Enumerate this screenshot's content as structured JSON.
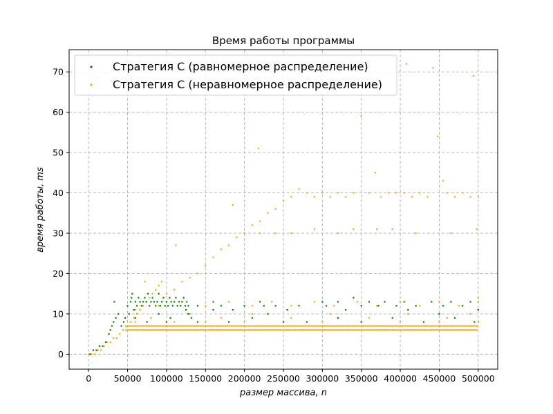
{
  "chart_data": {
    "type": "scatter",
    "title": "Время работы программы",
    "xlabel": "размер массива, n",
    "ylabel": "время работы, ms",
    "xlim": [
      -25000,
      525000
    ],
    "ylim": [
      -3.7,
      75.5
    ],
    "xticks": [
      0,
      50000,
      100000,
      150000,
      200000,
      250000,
      300000,
      350000,
      400000,
      450000,
      500000
    ],
    "yticks": [
      0,
      10,
      20,
      30,
      40,
      50,
      60,
      70
    ],
    "grid": true,
    "legend_position": "top-left",
    "series": [
      {
        "name": "Стратегия С (равномерное распределение)",
        "color": "#008000",
        "points": [
          [
            2000,
            0
          ],
          [
            6000,
            1
          ],
          [
            10000,
            1
          ],
          [
            14000,
            2
          ],
          [
            18000,
            2
          ],
          [
            22000,
            3
          ],
          [
            26000,
            5
          ],
          [
            28000,
            6
          ],
          [
            30000,
            7
          ],
          [
            32000,
            8
          ],
          [
            33000,
            13
          ],
          [
            35000,
            9
          ],
          [
            38000,
            10
          ],
          [
            42000,
            7
          ],
          [
            45000,
            8
          ],
          [
            47000,
            9
          ],
          [
            50000,
            12
          ],
          [
            52000,
            10
          ],
          [
            54000,
            13
          ],
          [
            55000,
            14
          ],
          [
            56000,
            15
          ],
          [
            58000,
            11
          ],
          [
            60000,
            13
          ],
          [
            62000,
            12
          ],
          [
            64000,
            14
          ],
          [
            66000,
            13
          ],
          [
            68000,
            12
          ],
          [
            70000,
            13
          ],
          [
            72000,
            14
          ],
          [
            74000,
            13
          ],
          [
            76000,
            15
          ],
          [
            78000,
            12
          ],
          [
            80000,
            13
          ],
          [
            82000,
            14
          ],
          [
            84000,
            13
          ],
          [
            86000,
            12
          ],
          [
            88000,
            13
          ],
          [
            90000,
            15
          ],
          [
            92000,
            12
          ],
          [
            94000,
            13
          ],
          [
            96000,
            14
          ],
          [
            98000,
            12
          ],
          [
            100000,
            13
          ],
          [
            102000,
            12
          ],
          [
            104000,
            14
          ],
          [
            106000,
            13
          ],
          [
            108000,
            12
          ],
          [
            110000,
            13
          ],
          [
            112000,
            14
          ],
          [
            114000,
            12
          ],
          [
            116000,
            13
          ],
          [
            118000,
            12
          ],
          [
            120000,
            13
          ],
          [
            122000,
            14
          ],
          [
            124000,
            12
          ],
          [
            126000,
            13
          ],
          [
            128000,
            12
          ],
          [
            60000,
            9
          ],
          [
            75000,
            8
          ],
          [
            90000,
            10
          ],
          [
            105000,
            9
          ],
          [
            125000,
            11
          ],
          [
            128000,
            10
          ],
          [
            132000,
            9
          ],
          [
            140000,
            12
          ],
          [
            160000,
            13
          ],
          [
            170000,
            12
          ],
          [
            185000,
            11
          ],
          [
            200000,
            12
          ],
          [
            220000,
            13
          ],
          [
            225000,
            12
          ],
          [
            240000,
            12
          ],
          [
            255000,
            11
          ],
          [
            270000,
            12
          ],
          [
            300000,
            13
          ],
          [
            305000,
            12
          ],
          [
            320000,
            13
          ],
          [
            340000,
            14
          ],
          [
            350000,
            12
          ],
          [
            360000,
            13
          ],
          [
            372000,
            12
          ],
          [
            380000,
            13
          ],
          [
            395000,
            12
          ],
          [
            405000,
            13
          ],
          [
            420000,
            12
          ],
          [
            440000,
            13
          ],
          [
            455000,
            12
          ],
          [
            465000,
            13
          ],
          [
            480000,
            12
          ],
          [
            490000,
            13
          ],
          [
            140000,
            8
          ],
          [
            180000,
            8
          ],
          [
            210000,
            9
          ],
          [
            250000,
            8
          ],
          [
            280000,
            8
          ],
          [
            320000,
            9
          ],
          [
            350000,
            8
          ],
          [
            390000,
            9
          ],
          [
            430000,
            8
          ],
          [
            470000,
            9
          ],
          [
            495000,
            8
          ],
          [
            100000,
            8
          ],
          [
            160000,
            11
          ],
          [
            230000,
            10
          ],
          [
            330000,
            11
          ],
          [
            410000,
            11
          ],
          [
            450000,
            10
          ],
          [
            500000,
            11
          ]
        ]
      },
      {
        "name": "Стратегия С (неравномерное распределение)",
        "color": "#FFA500",
        "points": [
          [
            0,
            0
          ],
          [
            4000,
            0
          ],
          [
            8000,
            0
          ],
          [
            12000,
            1
          ],
          [
            16000,
            1
          ],
          [
            20000,
            2
          ],
          [
            24000,
            3
          ],
          [
            28000,
            3
          ],
          [
            32000,
            4
          ],
          [
            36000,
            4
          ],
          [
            40000,
            5
          ],
          [
            44000,
            6
          ],
          [
            48000,
            7
          ],
          [
            54000,
            8
          ],
          [
            58000,
            9
          ],
          [
            62000,
            10
          ],
          [
            66000,
            11
          ],
          [
            70000,
            12
          ],
          [
            72000,
            18
          ],
          [
            74000,
            13
          ],
          [
            78000,
            14
          ],
          [
            82000,
            15
          ],
          [
            86000,
            16
          ],
          [
            90000,
            17
          ],
          [
            94000,
            18
          ],
          [
            100000,
            15
          ],
          [
            110000,
            16
          ],
          [
            112000,
            27
          ],
          [
            120000,
            18
          ],
          [
            130000,
            19
          ],
          [
            140000,
            20
          ],
          [
            150000,
            22
          ],
          [
            160000,
            24
          ],
          [
            170000,
            26
          ],
          [
            180000,
            27
          ],
          [
            185000,
            37
          ],
          [
            190000,
            29
          ],
          [
            200000,
            30
          ],
          [
            210000,
            32
          ],
          [
            218000,
            51
          ],
          [
            220000,
            33
          ],
          [
            230000,
            35
          ],
          [
            240000,
            36
          ],
          [
            250000,
            38
          ],
          [
            260000,
            39
          ],
          [
            270000,
            41
          ],
          [
            280000,
            40
          ],
          [
            290000,
            39
          ],
          [
            300000,
            40
          ],
          [
            310000,
            39
          ],
          [
            320000,
            40
          ],
          [
            330000,
            39
          ],
          [
            340000,
            40
          ],
          [
            350000,
            59
          ],
          [
            360000,
            40
          ],
          [
            368000,
            45
          ],
          [
            375000,
            39
          ],
          [
            385000,
            40
          ],
          [
            395000,
            40
          ],
          [
            405000,
            40
          ],
          [
            408000,
            72
          ],
          [
            415000,
            39
          ],
          [
            425000,
            40
          ],
          [
            435000,
            39
          ],
          [
            442000,
            71
          ],
          [
            448000,
            54
          ],
          [
            455000,
            43
          ],
          [
            460000,
            40
          ],
          [
            470000,
            39
          ],
          [
            480000,
            40
          ],
          [
            490000,
            39
          ],
          [
            494000,
            69
          ],
          [
            500000,
            39
          ],
          [
            220000,
            30
          ],
          [
            240000,
            30
          ],
          [
            260000,
            30
          ],
          [
            290000,
            31
          ],
          [
            320000,
            30
          ],
          [
            340000,
            31
          ],
          [
            370000,
            31
          ],
          [
            390000,
            31
          ],
          [
            420000,
            30
          ],
          [
            465000,
            30
          ],
          [
            498000,
            31
          ],
          [
            60000,
            11
          ],
          [
            90000,
            12
          ],
          [
            120000,
            13
          ],
          [
            150000,
            12
          ],
          [
            180000,
            13
          ],
          [
            210000,
            12
          ],
          [
            235000,
            13
          ],
          [
            260000,
            12
          ],
          [
            290000,
            13
          ],
          [
            315000,
            12
          ],
          [
            345000,
            13
          ],
          [
            370000,
            12
          ],
          [
            400000,
            13
          ],
          [
            425000,
            12
          ],
          [
            450000,
            13
          ],
          [
            475000,
            12
          ],
          [
            500000,
            13
          ],
          [
            500000,
            14
          ],
          [
            80000,
            9
          ],
          [
            130000,
            10
          ],
          [
            170000,
            9
          ],
          [
            210000,
            10
          ],
          [
            260000,
            9
          ],
          [
            310000,
            10
          ],
          [
            360000,
            9
          ],
          [
            410000,
            10
          ],
          [
            460000,
            9
          ],
          [
            490000,
            10
          ],
          [
            60000,
            8
          ],
          [
            110000,
            8
          ],
          [
            150000,
            8
          ],
          [
            200000,
            8
          ],
          [
            250000,
            8
          ],
          [
            300000,
            8
          ],
          [
            350000,
            8
          ],
          [
            400000,
            8
          ],
          [
            450000,
            8
          ],
          [
            500000,
            8
          ]
        ],
        "bands": [
          {
            "from": 48000,
            "to": 500000,
            "y": 6
          },
          {
            "from": 48000,
            "to": 500000,
            "y": 7
          }
        ]
      }
    ]
  }
}
